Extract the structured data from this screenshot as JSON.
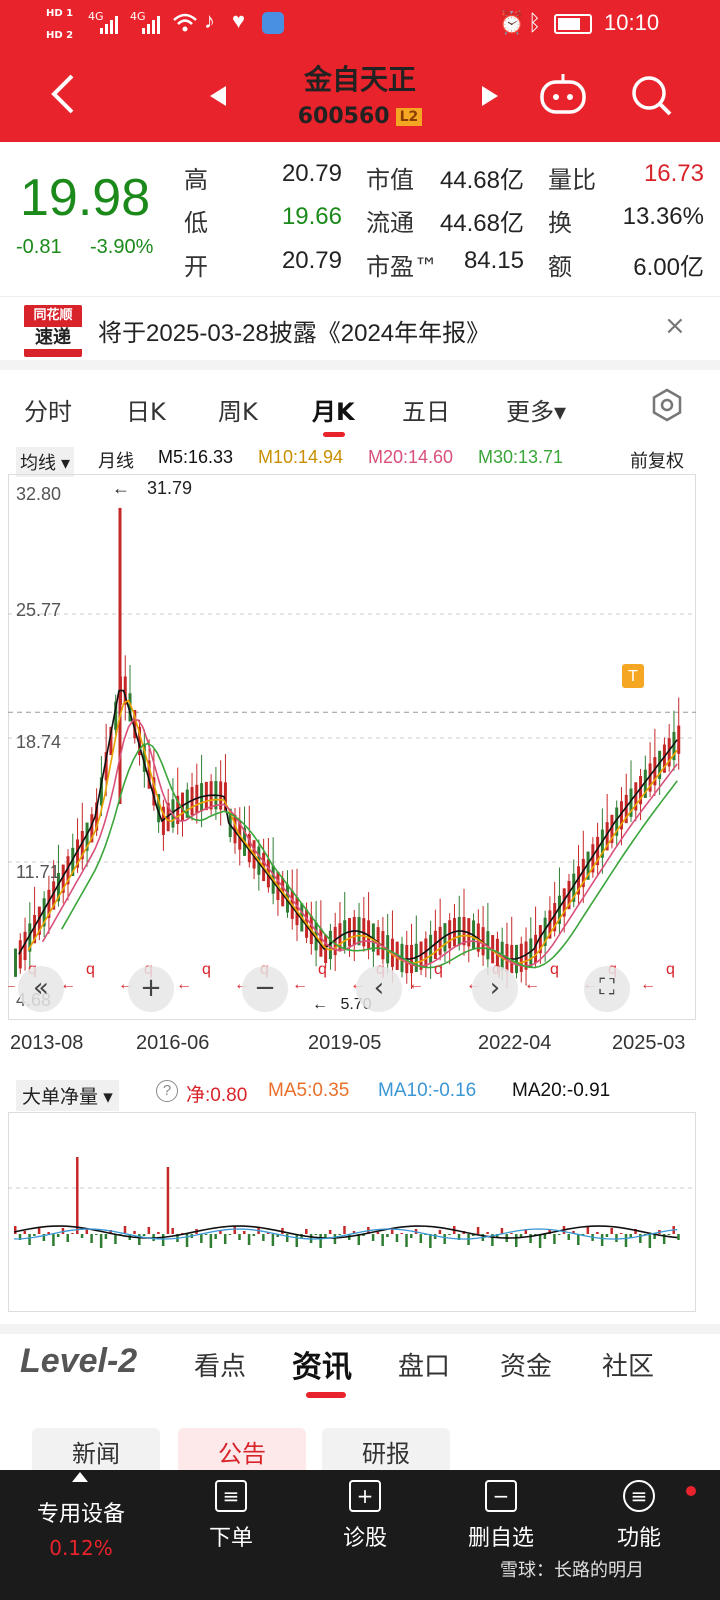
{
  "status": {
    "time": "10:10",
    "signal1": "4G",
    "signal2": "4G",
    "hd1": "HD 1",
    "hd2": "HD 2"
  },
  "header": {
    "title": "金自天正",
    "code": "600560",
    "level_badge": "L2"
  },
  "quote": {
    "price": "19.98",
    "change": "-0.81",
    "change_pct": "-3.90%",
    "rows": [
      {
        "l1": "高",
        "v1": "20.79",
        "l2": "市值",
        "v2": "44.68亿",
        "l3": "量比",
        "v3": "16.73"
      },
      {
        "l1": "低",
        "v1": "19.66",
        "l2": "流通",
        "v2": "44.68亿",
        "l3": "换",
        "v3": "13.36%"
      },
      {
        "l1": "开",
        "v1": "20.79",
        "l2": "市盈™",
        "v2": "84.15",
        "l3": "额",
        "v3": "6.00亿"
      }
    ]
  },
  "notice": {
    "logo_line1": "同花顺",
    "logo_line2": "速递",
    "text": "将于2025-03-28披露《2024年年报》",
    "close": "×"
  },
  "period_tabs": [
    "分时",
    "日K",
    "周K",
    "月K",
    "五日",
    "更多▾"
  ],
  "ma_legend": {
    "selector": "均线 ▾",
    "period": "月线",
    "m5": "M5:16.33",
    "m10": "M10:14.94",
    "m20": "M20:14.60",
    "m30": "M30:13.71",
    "adjust": "前复权"
  },
  "chart_data": {
    "type": "candlestick",
    "y_ticks": [
      "32.80",
      "25.77",
      "18.74",
      "11.71",
      "4.68"
    ],
    "x_ticks": [
      "2013-08",
      "2016-06",
      "2019-05",
      "2022-04",
      "2025-03"
    ],
    "high_marker": "31.79",
    "low_marker": "5.70",
    "ylim": [
      4.68,
      32.8
    ],
    "ma_colors": {
      "m5": "#111111",
      "m10": "#e8a400",
      "m20": "#d9507a",
      "m30": "#3aa53a"
    }
  },
  "chart_ctrl": {
    "back": "«",
    "zoom_in": "+",
    "zoom_out": "−",
    "prev": "‹",
    "next": "›",
    "full": "⛶",
    "marker": "T"
  },
  "indicator": {
    "selector": "大单净量 ▾",
    "help": "?",
    "net": "净:0.80",
    "ma5": "MA5:0.35",
    "ma10": "MA10:-0.16",
    "ma20": "MA20:-0.91"
  },
  "bottom_tabs": {
    "level2": "Level-2",
    "tabs": [
      "看点",
      "资讯",
      "盘口",
      "资金",
      "社区"
    ]
  },
  "sub_tabs": [
    "新闻",
    "公告",
    "研报"
  ],
  "nav": [
    {
      "label": "专用设备",
      "sub": "0.12%"
    },
    {
      "label": "下单",
      "icon": "≡"
    },
    {
      "label": "诊股",
      "icon": "+"
    },
    {
      "label": "删自选",
      "icon": "−"
    },
    {
      "label": "功能",
      "icon": "≡"
    }
  ],
  "watermark": "雪球：长路的明月"
}
